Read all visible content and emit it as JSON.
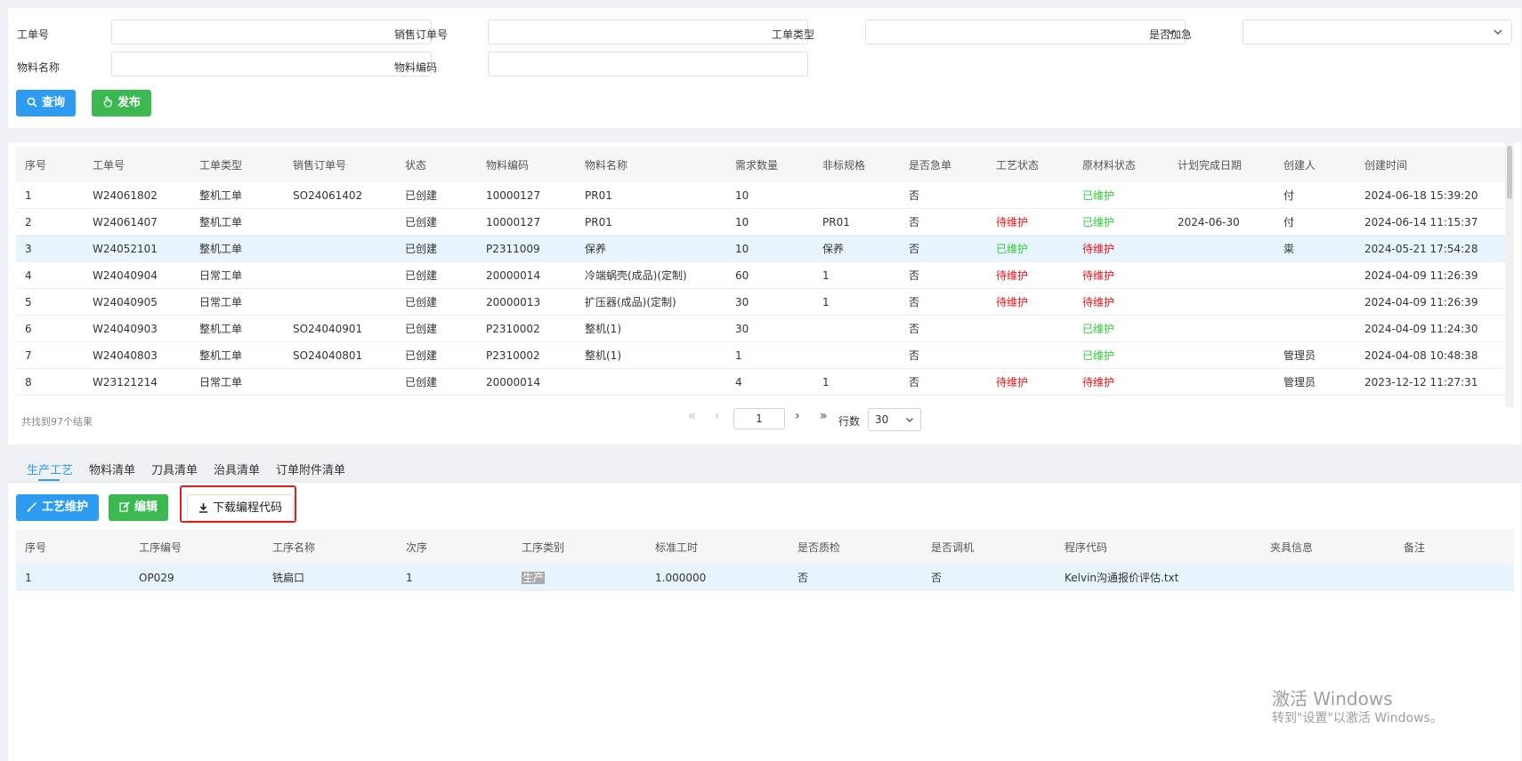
{
  "search": {
    "fields": [
      {
        "label": "工单号",
        "value": ""
      },
      {
        "label": "销售订单号",
        "value": ""
      },
      {
        "label": "工单类型",
        "value": ""
      },
      {
        "label": "是否加急",
        "value": ""
      },
      {
        "label": "物料名称",
        "value": ""
      },
      {
        "label": "物料编码",
        "value": ""
      }
    ],
    "query_label": "查询",
    "publish_label": "发布"
  },
  "grid": {
    "columns": [
      "序号",
      "工单号",
      "工单类型",
      "销售订单号",
      "状态",
      "物料编码",
      "物料名称",
      "需求数量",
      "非标规格",
      "是否急单",
      "工艺状态",
      "原材料状态",
      "计划完成日期",
      "创建人",
      "创建时间"
    ],
    "rows": [
      [
        "1",
        "W24061802",
        "整机工单",
        "SO24061402",
        "已创建",
        "10000127",
        "PR01",
        "10",
        "",
        "否",
        "",
        "已维护",
        "",
        "付",
        "2024-06-18 15:39:20"
      ],
      [
        "2",
        "W24061407",
        "整机工单",
        "",
        "已创建",
        "10000127",
        "PR01",
        "10",
        "PR01",
        "否",
        "待维护",
        "已维护",
        "2024-06-30",
        "付",
        "2024-06-14 11:15:37"
      ],
      [
        "3",
        "W24052101",
        "整机工单",
        "",
        "已创建",
        "P2311009",
        "保养",
        "10",
        "保养",
        "否",
        "已维护",
        "待维护",
        "",
        "粜",
        "2024-05-21 17:54:28"
      ],
      [
        "4",
        "W24040904",
        "日常工单",
        "",
        "已创建",
        "20000014",
        "冷端蜗壳(成品)(定制)",
        "60",
        "1",
        "否",
        "待维护",
        "待维护",
        "",
        "",
        "2024-04-09 11:26:39"
      ],
      [
        "5",
        "W24040905",
        "日常工单",
        "",
        "已创建",
        "20000013",
        "扩压器(成品)(定制)",
        "30",
        "1",
        "否",
        "待维护",
        "待维护",
        "",
        "",
        "2024-04-09 11:26:39"
      ],
      [
        "6",
        "W24040903",
        "整机工单",
        "SO24040901",
        "已创建",
        "P2310002",
        "整机(1)",
        "30",
        "",
        "否",
        "",
        "已维护",
        "",
        "",
        "2024-04-09 11:24:30"
      ],
      [
        "7",
        "W24040803",
        "整机工单",
        "SO24040801",
        "已创建",
        "P2310002",
        "整机(1)",
        "1",
        "",
        "否",
        "",
        "已维护",
        "",
        "管理员",
        "2024-04-08 10:48:38"
      ],
      [
        "8",
        "W23121214",
        "日常工单",
        "",
        "已创建",
        "20000014",
        "",
        "4",
        "1",
        "否",
        "待维护",
        "待维护",
        "",
        "管理员",
        "2023-12-12 11:27:31"
      ]
    ],
    "selected_row": 2
  },
  "pager": {
    "summary": "共找到97个结果",
    "page": "1",
    "rows_label": "行数",
    "page_size": "30"
  },
  "tabs": [
    "生产工艺",
    "物料清单",
    "刀具清单",
    "治具清单",
    "订单附件清单"
  ],
  "detail": {
    "maintain_label": "工艺维护",
    "edit_label": "编辑",
    "download_label": "下载编程代码",
    "columns": [
      "序号",
      "工序编号",
      "工序名称",
      "次序",
      "工序类别",
      "标准工时",
      "是否质检",
      "是否调机",
      "程序代码",
      "夹具信息",
      "备注"
    ],
    "rows": [
      [
        "1",
        "OP029",
        "铣扁口",
        "1",
        "生产",
        "1.000000",
        "否",
        "否",
        "Kelvin沟通报价评估.txt",
        "",
        ""
      ]
    ]
  },
  "watermark": {
    "line1": "激活 Windows",
    "line2": "转到\"设置\"以激活 Windows。"
  },
  "colors": {
    "accent": "#2d9cf0",
    "green": "#3bb84f",
    "status_red": "#e8141d",
    "status_green": "#2fcc3a",
    "highlight": "#e02020"
  }
}
